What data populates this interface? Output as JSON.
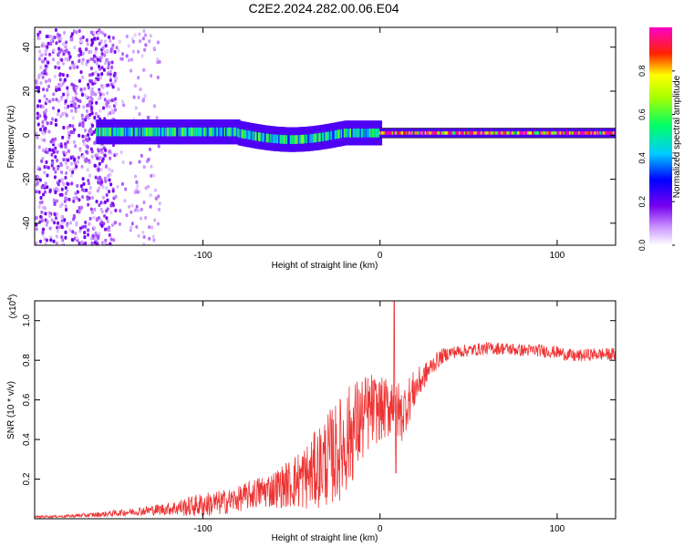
{
  "figure_title": "C2E2.2024.282.00.06.E04",
  "colors": {
    "snr_line": "#ee3333",
    "background": "#ffffff",
    "axis": "#000000"
  },
  "chart_data": [
    {
      "type": "heatmap",
      "title": "C2E2.2024.282.00.06.E04",
      "xlabel": "Height of straight line (km)",
      "ylabel": "Frequency (Hz)",
      "xlim": [
        -195,
        133
      ],
      "ylim": [
        -50,
        49
      ],
      "xticks": [
        -100,
        0,
        100
      ],
      "xtick_labels": [
        "-100",
        "0",
        "100"
      ],
      "yticks": [
        -40,
        -20,
        0,
        20,
        40
      ],
      "ytick_labels": [
        "-40",
        "-20",
        "0",
        "20",
        "40"
      ],
      "colorbar": {
        "label": "Normalized spectral amplitude",
        "range": [
          0,
          1
        ],
        "ticks": [
          0.0,
          0.2,
          0.4,
          0.6,
          0.8
        ],
        "tick_labels": [
          "0.0",
          "0.2",
          "0.4",
          "0.6",
          "0.8"
        ],
        "colormap": "rainbow (white, violet, blue, cyan, green, yellow, red, magenta)"
      },
      "features": [
        {
          "description": "broadband noise",
          "x_range": [
            -195,
            -150
          ],
          "freq_range": [
            -50,
            49
          ],
          "amplitude": 0.1
        },
        {
          "description": "sparse noise",
          "x_range": [
            -150,
            -125
          ],
          "freq_range": [
            -50,
            49
          ],
          "amplitude": 0.05
        },
        {
          "description": "signal band",
          "x_range": [
            -160,
            0
          ],
          "center_freq": 1,
          "half_width_hz": 4,
          "amplitude": 0.5
        },
        {
          "description": "signal band",
          "x_range": [
            0,
            133
          ],
          "center_freq": 1,
          "half_width_hz": 1.5,
          "amplitude": 0.9
        }
      ]
    },
    {
      "type": "line",
      "xlabel": "Height of straight line (km)",
      "ylabel": "SNR (10 * v/v)",
      "y_multiplier": "(x10⁴)",
      "y_multiplier_base": "(x10",
      "y_multiplier_exp": "4",
      "y_multiplier_close": ")",
      "xlim": [
        -195,
        133
      ],
      "ylim": [
        0,
        1.1
      ],
      "xticks": [
        -100,
        0,
        100
      ],
      "xtick_labels": [
        "-100",
        "0",
        "100"
      ],
      "yticks": [
        0.2,
        0.4,
        0.6,
        0.8,
        1.0
      ],
      "ytick_labels": [
        "0.2",
        "0.4",
        "0.6",
        "0.8",
        "1.0"
      ],
      "series": [
        {
          "name": "SNR",
          "x": [
            -195,
            -180,
            -160,
            -140,
            -120,
            -100,
            -90,
            -80,
            -70,
            -60,
            -50,
            -45,
            -40,
            -35,
            -30,
            -25,
            -20,
            -15,
            -10,
            -5,
            0,
            5,
            8,
            10,
            12,
            15,
            20,
            25,
            30,
            35,
            40,
            50,
            60,
            70,
            80,
            90,
            100,
            110,
            120,
            133
          ],
          "y": [
            0.01,
            0.012,
            0.02,
            0.035,
            0.05,
            0.07,
            0.08,
            0.1,
            0.13,
            0.15,
            0.18,
            0.2,
            0.22,
            0.26,
            0.3,
            0.33,
            0.38,
            0.45,
            0.5,
            0.55,
            0.55,
            0.56,
            0.62,
            0.55,
            0.52,
            0.58,
            0.66,
            0.72,
            0.78,
            0.82,
            0.84,
            0.85,
            0.86,
            0.86,
            0.85,
            0.85,
            0.84,
            0.82,
            0.83,
            0.83
          ],
          "noise_amplitude": [
            0.003,
            0.004,
            0.008,
            0.012,
            0.02,
            0.04,
            0.04,
            0.04,
            0.05,
            0.06,
            0.08,
            0.1,
            0.11,
            0.13,
            0.15,
            0.16,
            0.17,
            0.16,
            0.14,
            0.12,
            0.1,
            0.1,
            0.1,
            0.1,
            0.09,
            0.08,
            0.06,
            0.04,
            0.03,
            0.025,
            0.02,
            0.02,
            0.02,
            0.02,
            0.02,
            0.02,
            0.02,
            0.02,
            0.02,
            0.02
          ],
          "spikes": [
            {
              "x": 8,
              "y": 1.1
            },
            {
              "x": 9,
              "y": 0.23
            }
          ]
        }
      ]
    }
  ]
}
